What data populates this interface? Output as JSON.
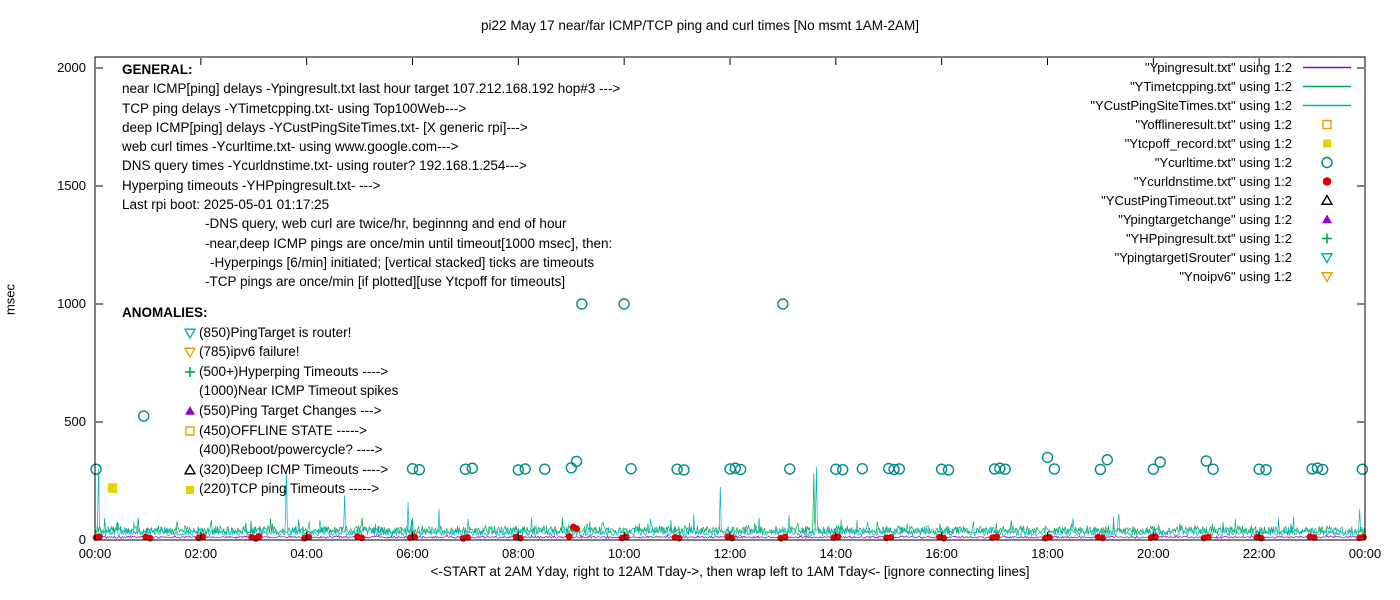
{
  "title": "pi22 May 17  near/far ICMP/TCP ping and curl times [No msmt 1AM-2AM]",
  "ylabel": "msec",
  "xlabel": "<-START at 2AM Yday, right to 12AM Tday->, then wrap left to 1AM Tday<- [ignore connecting lines]",
  "general": {
    "header": "GENERAL:",
    "lines": [
      {
        "t": "near ICMP[ping] delays -Ypingresult.txt last hour target 107.212.168.192 hop#3 --->",
        "i": 0
      },
      {
        "t": "TCP ping delays -YTimetcpping.txt- using Top100Web--->",
        "i": 0
      },
      {
        "t": "deep ICMP[ping] delays -YCustPingSiteTimes.txt- [X generic rpi]--->",
        "i": 0
      },
      {
        "t": "web curl times -Ycurltime.txt- using www.google.com--->",
        "i": 0
      },
      {
        "t": "DNS query times -Ycurldnstime.txt- using router? 192.168.1.254--->",
        "i": 0
      },
      {
        "t": "Hyperping timeouts -YHPpingresult.txt- --->",
        "i": 0
      },
      {
        "t": "Last rpi boot: 2025-05-01 01:17:25",
        "i": 0
      },
      {
        "t": "-DNS query, web curl are twice/hr, beginnng and end of hour",
        "i": 83
      },
      {
        "t": "-near,deep ICMP pings are once/min until timeout[1000 msec], then:",
        "i": 83
      },
      {
        "t": "-Hyperpings [6/min] initiated; [vertical stacked] ticks are timeouts",
        "i": 88
      },
      {
        "t": "-TCP pings are once/min [if plotted][use Ytcpoff for timeouts]",
        "i": 83
      }
    ]
  },
  "anomalies": {
    "header": "ANOMALIES:",
    "items": [
      {
        "icon": "triangle-down-open",
        "color": "#00b3b3",
        "t": "(850)PingTarget is router!"
      },
      {
        "icon": "triangle-down-open",
        "color": "#e69f00",
        "t": "(785)ipv6 failure!"
      },
      {
        "icon": "plus",
        "color": "#00a550",
        "t": "(500+)Hyperping Timeouts ---->"
      },
      {
        "icon": null,
        "color": null,
        "t": "(1000)Near ICMP Timeout spikes"
      },
      {
        "icon": "triangle-up-filled",
        "color": "#9400d3",
        "t": "(550)Ping Target Changes --->"
      },
      {
        "icon": "square-open",
        "color": "#e69f00",
        "t": "(450)OFFLINE STATE ----->"
      },
      {
        "icon": null,
        "color": null,
        "t": "(400)Reboot/powercycle? ---->"
      },
      {
        "icon": "triangle-up-open",
        "color": "#000000",
        "t": "(320)Deep ICMP Timeouts ---->"
      },
      {
        "icon": "square-filled",
        "color": "#e3d400",
        "t": "(220)TCP ping Timeouts ----->"
      }
    ]
  },
  "legend": [
    {
      "label": "\"Ypingresult.txt\" using 1:2",
      "key": "line",
      "color": "#9400d3"
    },
    {
      "label": "\"YTimetcpping.txt\" using 1:2",
      "key": "line",
      "color": "#00a550"
    },
    {
      "label": "\"YCustPingSiteTimes.txt\" using 1:2",
      "key": "line",
      "color": "#00b3b3"
    },
    {
      "label": "\"Yofflineresult.txt\" using 1:2",
      "key": "square-open",
      "color": "#e69f00"
    },
    {
      "label": "\"Ytcpoff_record.txt\" using 1:2",
      "key": "square-filled",
      "color": "#e3d400"
    },
    {
      "label": "\"Ycurltime.txt\" using 1:2",
      "key": "circle-open",
      "color": "#008b8b"
    },
    {
      "label": "\"Ycurldnstime.txt\" using 1:2",
      "key": "circle-filled",
      "color": "#e00000"
    },
    {
      "label": "\"YCustPingTimeout.txt\" using 1:2",
      "key": "triangle-up-open",
      "color": "#000000"
    },
    {
      "label": "\"Ypingtargetchange\" using 1:2",
      "key": "triangle-up-filled",
      "color": "#9400d3"
    },
    {
      "label": "\"YHPpingresult.txt\" using 1:2",
      "key": "plus",
      "color": "#00a550"
    },
    {
      "label": "\"YpingtargetISrouter\" using 1:2",
      "key": "triangle-down-open",
      "color": "#00b3b3"
    },
    {
      "label": "\"Ynoipv6\" using 1:2",
      "key": "triangle-down-open",
      "color": "#e69f00"
    }
  ],
  "chart_data": {
    "type": "line",
    "title": "pi22 May 17  near/far ICMP/TCP ping and curl times [No msmt 1AM-2AM]",
    "xlabel": "<-START at 2AM Yday, right to 12AM Tday->, then wrap left to 1AM Tday<- [ignore connecting lines]",
    "ylabel": "msec",
    "xlim": [
      0,
      24
    ],
    "ylim": [
      0,
      2000
    ],
    "grid": false,
    "legend_position": "top-right",
    "xtick_hours": [
      0,
      2,
      4,
      6,
      8,
      10,
      12,
      14,
      16,
      18,
      20,
      22,
      24
    ],
    "xtick_labels": [
      "00:00",
      "02:00",
      "04:00",
      "06:00",
      "08:00",
      "10:00",
      "12:00",
      "14:00",
      "16:00",
      "18:00",
      "20:00",
      "22:00",
      "00:00"
    ],
    "yticks": [
      0,
      500,
      1000,
      1500,
      2000
    ],
    "series": [
      {
        "name": "Ypingresult.txt",
        "color": "#9400d3",
        "baseline": 10,
        "noise": 4,
        "spikes": []
      },
      {
        "name": "YTimetcpping.txt",
        "color": "#00a550",
        "baseline": 30,
        "noise": 20,
        "spikes": [
          [
            2.2,
            85
          ],
          [
            5.05,
            95
          ],
          [
            9.6,
            75
          ],
          [
            13.58,
            280
          ],
          [
            20.1,
            60
          ]
        ]
      },
      {
        "name": "YCustPingSiteTimes.txt",
        "color": "#00b3b3",
        "baseline": 20,
        "noise": 26,
        "spikes": [
          [
            0.07,
            300
          ],
          [
            3.62,
            285
          ],
          [
            4.05,
            80
          ],
          [
            4.72,
            190
          ],
          [
            5.3,
            70
          ],
          [
            5.92,
            160
          ],
          [
            6.5,
            130
          ],
          [
            7.05,
            90
          ],
          [
            8.3,
            60
          ],
          [
            9.35,
            80
          ],
          [
            10.45,
            70
          ],
          [
            11.82,
            225
          ],
          [
            12.55,
            95
          ],
          [
            13.12,
            105
          ],
          [
            13.63,
            310
          ],
          [
            14.4,
            85
          ],
          [
            15.35,
            70
          ],
          [
            16.6,
            80
          ],
          [
            17.35,
            60
          ],
          [
            18.45,
            70
          ],
          [
            19.35,
            110
          ],
          [
            20.5,
            70
          ],
          [
            21.55,
            90
          ],
          [
            22.6,
            70
          ],
          [
            23.9,
            130
          ]
        ]
      }
    ],
    "markers": [
      {
        "name": "Ycurltime.txt",
        "shape": "circle-open",
        "color": "#008b8b",
        "size": 5,
        "points": [
          [
            0.02,
            300
          ],
          [
            0.92,
            525
          ],
          [
            6.0,
            302
          ],
          [
            6.13,
            298
          ],
          [
            7.0,
            300
          ],
          [
            7.13,
            304
          ],
          [
            8.0,
            297
          ],
          [
            8.13,
            301
          ],
          [
            8.5,
            300
          ],
          [
            9.0,
            306
          ],
          [
            9.1,
            333
          ],
          [
            9.2,
            1000
          ],
          [
            10.0,
            1000
          ],
          [
            10.13,
            302
          ],
          [
            11.0,
            300
          ],
          [
            11.13,
            297
          ],
          [
            12.0,
            301
          ],
          [
            12.1,
            304
          ],
          [
            12.2,
            299
          ],
          [
            13.0,
            1000
          ],
          [
            13.13,
            301
          ],
          [
            14.0,
            300
          ],
          [
            14.13,
            298
          ],
          [
            14.5,
            302
          ],
          [
            15.0,
            303
          ],
          [
            15.1,
            299
          ],
          [
            15.2,
            301
          ],
          [
            16.0,
            300
          ],
          [
            16.13,
            297
          ],
          [
            17.0,
            301
          ],
          [
            17.1,
            304
          ],
          [
            17.2,
            300
          ],
          [
            18.0,
            350
          ],
          [
            18.13,
            301
          ],
          [
            19.0,
            299
          ],
          [
            19.13,
            340
          ],
          [
            20.0,
            300
          ],
          [
            20.13,
            330
          ],
          [
            21.0,
            335
          ],
          [
            21.13,
            300
          ],
          [
            22.0,
            300
          ],
          [
            22.13,
            298
          ],
          [
            23.0,
            301
          ],
          [
            23.1,
            305
          ],
          [
            23.2,
            299
          ],
          [
            23.95,
            300
          ]
        ]
      },
      {
        "name": "Ycurldnstime.txt",
        "shape": "circle-filled",
        "color": "#e00000",
        "size": 4,
        "points": [
          [
            0.02,
            10
          ],
          [
            0.08,
            14
          ],
          [
            0.96,
            12
          ],
          [
            1.04,
            8
          ],
          [
            1.96,
            9
          ],
          [
            2.04,
            13
          ],
          [
            2.96,
            11
          ],
          [
            3.04,
            7
          ],
          [
            3.1,
            15
          ],
          [
            3.96,
            8
          ],
          [
            4.04,
            12
          ],
          [
            4.96,
            14
          ],
          [
            5.04,
            9
          ],
          [
            5.96,
            10
          ],
          [
            6.04,
            13
          ],
          [
            6.96,
            7
          ],
          [
            7.04,
            11
          ],
          [
            7.96,
            12
          ],
          [
            8.04,
            8
          ],
          [
            8.96,
            15
          ],
          [
            9.04,
            55
          ],
          [
            9.1,
            48
          ],
          [
            9.96,
            9
          ],
          [
            10.04,
            12
          ],
          [
            10.96,
            11
          ],
          [
            11.04,
            8
          ],
          [
            11.96,
            13
          ],
          [
            12.04,
            9
          ],
          [
            12.96,
            8
          ],
          [
            13.04,
            12
          ],
          [
            13.96,
            10
          ],
          [
            14.04,
            14
          ],
          [
            14.96,
            9
          ],
          [
            15.04,
            11
          ],
          [
            15.96,
            12
          ],
          [
            16.04,
            8
          ],
          [
            16.96,
            10
          ],
          [
            17.04,
            13
          ],
          [
            17.96,
            8
          ],
          [
            18.04,
            11
          ],
          [
            18.96,
            12
          ],
          [
            19.04,
            9
          ],
          [
            19.96,
            10
          ],
          [
            20.04,
            13
          ],
          [
            20.96,
            9
          ],
          [
            21.04,
            12
          ],
          [
            21.96,
            11
          ],
          [
            22.04,
            8
          ],
          [
            22.96,
            13
          ],
          [
            23.04,
            10
          ],
          [
            23.9,
            9
          ],
          [
            23.97,
            12
          ]
        ]
      },
      {
        "name": "Ytcpoff_record.txt",
        "shape": "square-filled",
        "color": "#e3d400",
        "size": 6,
        "points": [
          [
            0.33,
            220
          ]
        ]
      },
      {
        "name": "Yofflineresult.txt",
        "shape": "square-open",
        "color": "#e69f00",
        "size": 6,
        "points": []
      },
      {
        "name": "YCustPingTimeout.txt",
        "shape": "triangle-up-open",
        "color": "#000000",
        "size": 6,
        "points": []
      },
      {
        "name": "Ypingtargetchange",
        "shape": "triangle-up-filled",
        "color": "#9400d3",
        "size": 6,
        "points": []
      },
      {
        "name": "YHPpingresult.txt",
        "shape": "plus",
        "color": "#00a550",
        "size": 5,
        "points": []
      },
      {
        "name": "YpingtargetISrouter",
        "shape": "triangle-down-open",
        "color": "#00b3b3",
        "size": 6,
        "points": []
      },
      {
        "name": "Ynoipv6",
        "shape": "triangle-down-open",
        "color": "#e69f00",
        "size": 6,
        "points": []
      }
    ]
  }
}
